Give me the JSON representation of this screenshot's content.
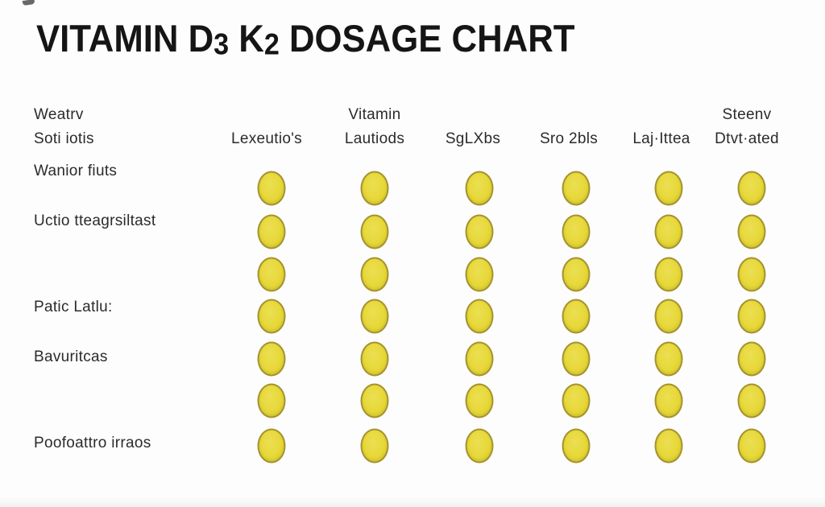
{
  "colors": {
    "background": "#fdfdfd",
    "title": "#151515",
    "text": "#2b2b2b",
    "pill_fill": "#e6d736",
    "pill_border": "#a4932f"
  },
  "chart_data": {
    "type": "table",
    "title": "VITAMIN D3 K2 DOSAGE CHART",
    "title_segments": [
      {
        "text": "VITAMIN D",
        "subscript": false
      },
      {
        "text": "3",
        "subscript": true
      },
      {
        "text": " K",
        "subscript": false
      },
      {
        "text": "2",
        "subscript": true
      },
      {
        "text": " DOSAGE CHART",
        "subscript": false
      }
    ],
    "corner_header_lines": [
      "Weatrv",
      "Soti iotis"
    ],
    "column_headers": [
      {
        "lines": [
          "",
          "Lexeutio's"
        ]
      },
      {
        "lines": [
          "Vitamin",
          "Lautiods"
        ]
      },
      {
        "lines": [
          "",
          "SgLXbs"
        ]
      },
      {
        "lines": [
          "",
          "Sro 2bls"
        ]
      },
      {
        "lines": [
          "",
          "Laj·Ittea"
        ]
      },
      {
        "lines": [
          "Steenv",
          "Dtvt·ated"
        ]
      }
    ],
    "rows": [
      {
        "label": "Wanior fiuts",
        "cells": [
          1,
          1,
          1,
          1,
          1,
          1
        ]
      },
      {
        "label": "Uctio tteagrsiltast",
        "cells": [
          1,
          1,
          1,
          1,
          1,
          1
        ]
      },
      {
        "label": "",
        "cells": [
          1,
          1,
          1,
          1,
          1,
          1
        ]
      },
      {
        "label": "Patic Latlu:",
        "cells": [
          1,
          1,
          1,
          1,
          1,
          1
        ]
      },
      {
        "label": "Bavuritcas",
        "cells": [
          1,
          1,
          1,
          1,
          1,
          1
        ]
      },
      {
        "label": "",
        "cells": [
          1,
          1,
          1,
          1,
          1,
          1
        ]
      },
      {
        "label": "Poofoattro irraos",
        "cells": [
          1,
          1,
          1,
          1,
          1,
          1
        ]
      }
    ],
    "cell_marker": "yellow softgel capsule",
    "legend_position": "none",
    "grid": false
  }
}
